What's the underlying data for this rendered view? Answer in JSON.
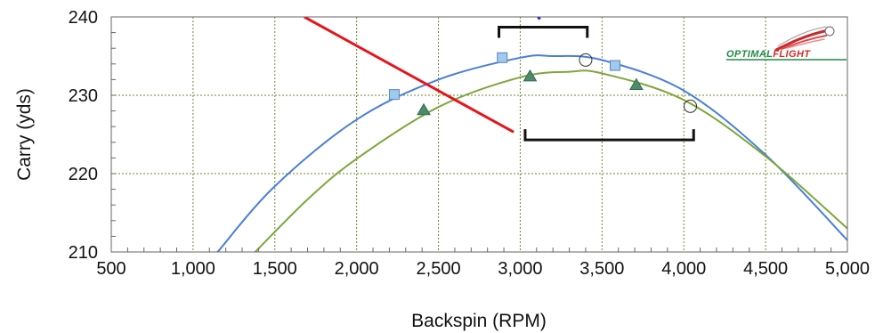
{
  "chart_data": {
    "type": "scatter",
    "title": "",
    "xlabel": "Backspin (RPM)",
    "ylabel": "Carry (yds)",
    "xlim": [
      500,
      5000
    ],
    "ylim": [
      210,
      240
    ],
    "x_ticks": [
      500,
      1000,
      1500,
      2000,
      2500,
      3000,
      3500,
      4000,
      4500,
      5000
    ],
    "x_tick_labels": [
      "500",
      "1,000",
      "1,500",
      "2,000",
      "2,500",
      "3,000",
      "3,500",
      "4,000",
      "4,500",
      "5,000"
    ],
    "y_ticks": [
      210,
      220,
      230,
      240
    ],
    "y_tick_labels": [
      "210",
      "220",
      "230",
      "240"
    ],
    "grid": true,
    "series": [
      {
        "marker": "square",
        "color": "#9fc9ee",
        "points": [
          [
            2230,
            230.1
          ],
          [
            2890,
            234.8
          ],
          [
            3580,
            233.8
          ]
        ]
      },
      {
        "marker": "triangle",
        "color": "#4e8a6c",
        "points": [
          [
            2410,
            228.1
          ],
          [
            3060,
            232.4
          ],
          [
            3710,
            231.3
          ]
        ]
      },
      {
        "marker": "circle",
        "color": "#333333",
        "points": [
          [
            3400,
            234.5
          ],
          [
            4040,
            228.6
          ]
        ]
      }
    ],
    "fit_curves": [
      {
        "color": "#4a7fd6",
        "points": [
          [
            1150,
            210
          ],
          [
            1500,
            218.4
          ],
          [
            2000,
            226.9
          ],
          [
            2500,
            232.0
          ],
          [
            3000,
            234.8
          ],
          [
            3200,
            235.0
          ],
          [
            3500,
            234.5
          ],
          [
            4000,
            230.6
          ],
          [
            4500,
            222.4
          ],
          [
            5000,
            211.5
          ]
        ]
      },
      {
        "color": "#7ea63b",
        "points": [
          [
            1380,
            210
          ],
          [
            1700,
            216.7
          ],
          [
            2000,
            221.9
          ],
          [
            2500,
            228.5
          ],
          [
            3000,
            232.3
          ],
          [
            3300,
            233.0
          ],
          [
            3500,
            232.8
          ],
          [
            4000,
            229.4
          ],
          [
            4500,
            222.2
          ],
          [
            5000,
            213.0
          ]
        ]
      }
    ],
    "lines": [
      {
        "color": "#e8141c",
        "points": [
          [
            1680,
            240
          ],
          [
            2960,
            225.3
          ]
        ]
      },
      {
        "color": "#1b1be0",
        "points": [
          [
            2980,
            244
          ],
          [
            3120,
            239.7
          ]
        ]
      }
    ],
    "ranges": [
      {
        "color": "#111111",
        "x": [
          2870,
          3410
        ],
        "y": 238.7,
        "tick_dir": "down"
      },
      {
        "color": "#111111",
        "x": [
          3030,
          4060
        ],
        "y": 224.3,
        "tick_dir": "up"
      }
    ]
  },
  "logo": {
    "text_a": "OPTIMAL",
    "text_b": "FLIGHT",
    "color_a": "#1e8a45",
    "color_b": "#d42a2a"
  },
  "colors": {
    "grid": "#6b8a2a",
    "plot_border": "#666666"
  }
}
